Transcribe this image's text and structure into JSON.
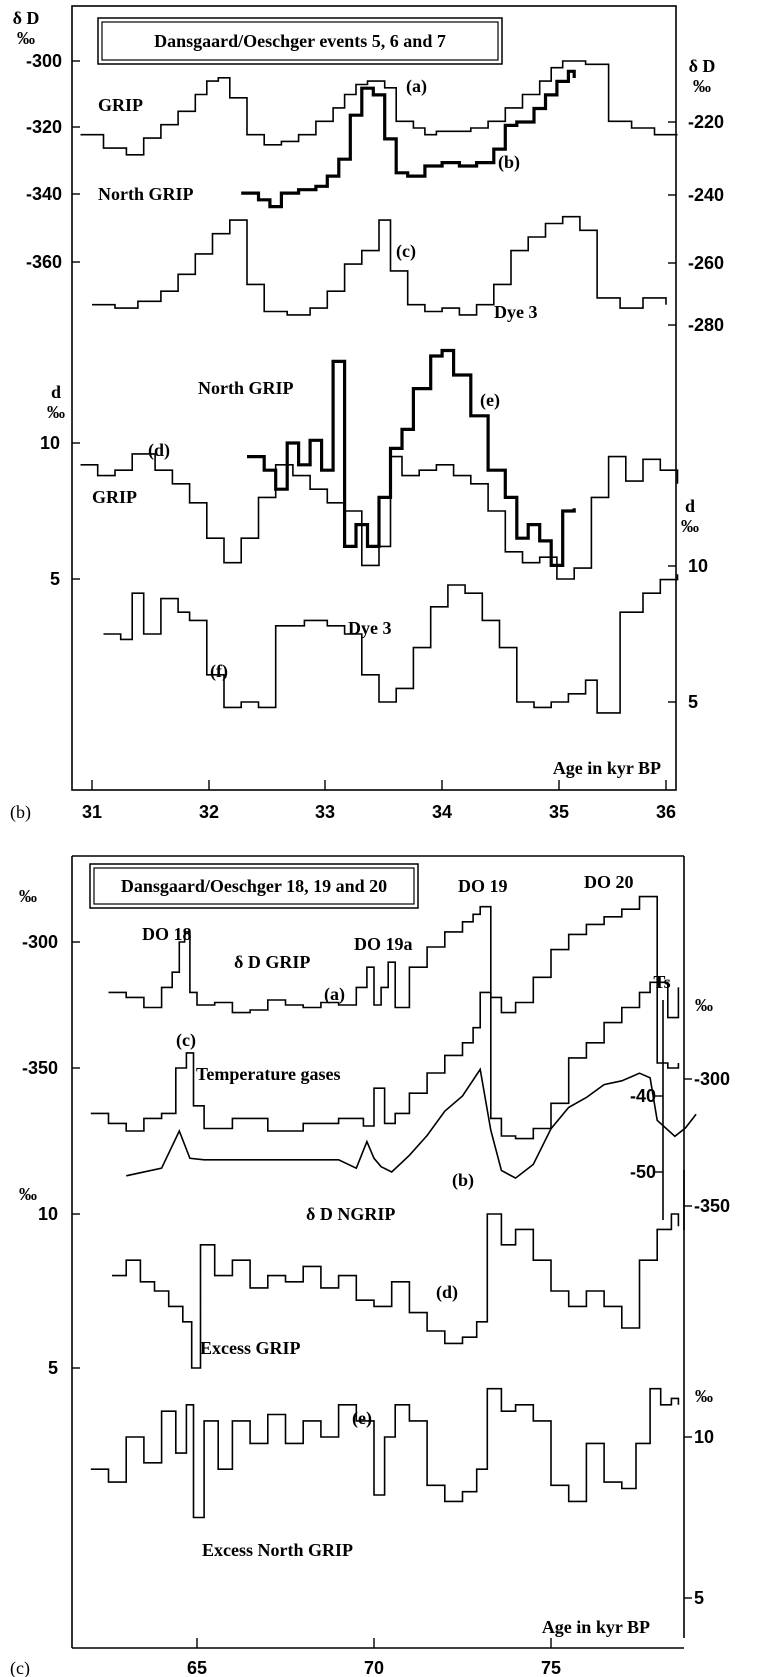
{
  "panel_b": {
    "panel_label": "(b)",
    "title": "Dansgaard/Oeschger events 5, 6 and 7",
    "xlabel": "Age in kyr BP",
    "x_ticks": [
      "31",
      "32",
      "33",
      "34",
      "35",
      "36"
    ],
    "left_dD_unit": "δ D",
    "left_dD_permil": "‰",
    "left_dD_ticks": [
      "-300",
      "-320",
      "-340",
      "-360"
    ],
    "right_dD_unit": "δ D",
    "right_dD_permil": "‰",
    "right_dD_ticks": [
      "-220",
      "-240",
      "-260",
      "-280"
    ],
    "left_d_unit": "d",
    "left_d_permil": "‰",
    "left_d_ticks": [
      "10",
      "5"
    ],
    "right_d_unit": "d",
    "right_d_permil": "‰",
    "right_d_ticks": [
      "10",
      "5"
    ],
    "labels": {
      "grip_a": "GRIP",
      "ngrip_b": "North GRIP",
      "dye3_c": "Dye 3",
      "ngrip_e": "North GRIP",
      "grip_d": "GRIP",
      "dye3_f": "Dye 3",
      "a": "(a)",
      "b": "(b)",
      "c": "(c)",
      "d": "(d)",
      "e": "(e)",
      "f": "(f)"
    }
  },
  "panel_c": {
    "panel_label": "(c)",
    "title": "Dansgaard/Oeschger 18, 19 and 20",
    "xlabel": "Age in kyr BP",
    "x_ticks": [
      "65",
      "70",
      "75"
    ],
    "left_permil_top": "‰",
    "left_top_ticks": [
      "-300",
      "-350"
    ],
    "left_permil_mid": "‰",
    "left_mid_ticks": [
      "10",
      "5"
    ],
    "right_permil_1": "‰",
    "right_dD_ticks": [
      "-300",
      "-350"
    ],
    "ts_label": "Ts",
    "ts_ticks": [
      "-40",
      "-50"
    ],
    "right_permil_2": "‰",
    "right_d_ticks": [
      "10",
      "5"
    ],
    "labels": {
      "do18": "DO 18",
      "do19a": "DO 19a",
      "do19": "DO 19",
      "do20": "DO 20",
      "dD_grip": "δ D  GRIP",
      "a": "(a)",
      "c": "(c)",
      "temp_gases": "Temperature gases",
      "b": "(b)",
      "dD_ngrip": "δ D NGRIP",
      "d": "(d)",
      "excess_grip": "Excess GRIP",
      "e": "(e)",
      "excess_ngrip": "Excess North GRIP"
    }
  },
  "chart_data": [
    {
      "type": "line",
      "title": "Dansgaard/Oeschger events 5, 6 and 7",
      "xlabel": "Age in kyr BP",
      "xlim": [
        30.9,
        36.1
      ],
      "series": [
        {
          "name": "GRIP",
          "axis": "δD ‰ (left)",
          "step": true,
          "x": [
            30.9,
            31.1,
            31.3,
            31.45,
            31.6,
            31.75,
            31.9,
            32.0,
            32.1,
            32.2,
            32.35,
            32.5,
            32.65,
            32.8,
            32.95,
            33.1,
            33.2,
            33.3,
            33.4,
            33.55,
            33.65,
            33.8,
            33.9,
            34.0,
            34.15,
            34.3,
            34.45,
            34.6,
            34.75,
            34.9,
            35.0,
            35.1,
            35.3,
            35.5,
            35.7,
            35.9,
            36.1
          ],
          "y": [
            -322,
            -326,
            -328,
            -323,
            -319,
            -315,
            -310,
            -306,
            -305,
            -311,
            -322,
            -325,
            -324,
            -322,
            -318,
            -314,
            -310,
            -307,
            -306,
            -308,
            -318,
            -320,
            -322,
            -321,
            -321,
            -320,
            -318,
            -314,
            -310,
            -306,
            -302,
            -300,
            -301,
            -318,
            -320,
            -322,
            -322
          ]
        },
        {
          "name": "North GRIP",
          "axis": "δD ‰ (right)",
          "step": true,
          "x": [
            32.3,
            32.45,
            32.55,
            32.65,
            32.8,
            32.95,
            33.05,
            33.15,
            33.25,
            33.35,
            33.45,
            33.55,
            33.65,
            33.75,
            33.9,
            34.05,
            34.2,
            34.35,
            34.5,
            34.6,
            34.7,
            34.85,
            34.95,
            35.05,
            35.15,
            35.2
          ],
          "y": [
            -241,
            -243,
            -245,
            -241,
            -240,
            -239,
            -236,
            -231,
            -218,
            -210,
            -212,
            -225,
            -235,
            -236,
            -233,
            -232,
            -233,
            -232,
            -228,
            -221,
            -220,
            -216,
            -212,
            -208,
            -205,
            -207
          ]
        },
        {
          "name": "Dye 3",
          "axis": "δD ‰ (right)",
          "step": true,
          "x": [
            31.0,
            31.2,
            31.4,
            31.6,
            31.75,
            31.9,
            32.05,
            32.2,
            32.35,
            32.5,
            32.7,
            32.9,
            33.05,
            33.2,
            33.35,
            33.5,
            33.6,
            33.75,
            33.9,
            34.05,
            34.2,
            34.35,
            34.5,
            34.65,
            34.8,
            34.95,
            35.1,
            35.25,
            35.4,
            35.6,
            35.8,
            36.0
          ],
          "y": [
            -274,
            -275,
            -273,
            -270,
            -265,
            -259,
            -253,
            -249,
            -268,
            -276,
            -277,
            -275,
            -270,
            -262,
            -258,
            -249,
            -264,
            -274,
            -276,
            -275,
            -277,
            -274,
            -268,
            -258,
            -254,
            -250,
            -248,
            -252,
            -272,
            -275,
            -272,
            -274
          ]
        },
        {
          "name": "GRIP",
          "axis": "d ‰ (left)",
          "step": true,
          "x": [
            30.9,
            31.05,
            31.2,
            31.35,
            31.55,
            31.7,
            31.85,
            32.0,
            32.15,
            32.3,
            32.45,
            32.6,
            32.75,
            32.9,
            33.05,
            33.2,
            33.35,
            33.5,
            33.6,
            33.7,
            33.85,
            34.0,
            34.15,
            34.3,
            34.45,
            34.6,
            34.75,
            34.9,
            35.05,
            35.2,
            35.35,
            35.5,
            35.65,
            35.8,
            35.95,
            36.1
          ],
          "y": [
            9.2,
            8.8,
            9.0,
            9.6,
            9.0,
            8.5,
            7.8,
            6.5,
            5.6,
            6.5,
            8.0,
            9.2,
            8.8,
            8.3,
            7.8,
            7.5,
            5.5,
            6.2,
            9.5,
            8.8,
            9.0,
            9.2,
            8.8,
            8.5,
            7.5,
            6.0,
            5.6,
            5.8,
            5.0,
            5.4,
            8.0,
            9.5,
            8.6,
            9.4,
            9.0,
            8.5
          ]
        },
        {
          "name": "North GRIP",
          "axis": "d ‰ (left)",
          "step": true,
          "x": [
            32.35,
            32.5,
            32.6,
            32.7,
            32.8,
            32.9,
            33.0,
            33.1,
            33.2,
            33.3,
            33.4,
            33.5,
            33.6,
            33.7,
            33.8,
            33.95,
            34.05,
            34.15,
            34.3,
            34.45,
            34.6,
            34.7,
            34.8,
            34.9,
            35.0,
            35.1,
            35.2
          ],
          "y": [
            9.5,
            9.0,
            8.3,
            10.0,
            9.2,
            10.1,
            9.0,
            13.0,
            6.2,
            7.0,
            6.2,
            8.0,
            9.8,
            10.5,
            12.0,
            13.2,
            13.4,
            12.5,
            11.0,
            9.0,
            8.0,
            6.5,
            7.0,
            6.4,
            5.5,
            7.5,
            7.6
          ]
        },
        {
          "name": "Dye 3",
          "axis": "d ‰ (right)",
          "step": true,
          "x": [
            31.1,
            31.25,
            31.35,
            31.45,
            31.6,
            31.75,
            31.85,
            32.0,
            32.15,
            32.3,
            32.45,
            32.6,
            32.85,
            33.05,
            33.2,
            33.35,
            33.5,
            33.65,
            33.8,
            33.95,
            34.1,
            34.25,
            34.4,
            34.55,
            34.7,
            34.85,
            35.0,
            35.15,
            35.3,
            35.4,
            35.6,
            35.8,
            35.95,
            36.1
          ],
          "y": [
            7.5,
            7.3,
            9.0,
            7.5,
            8.8,
            8.3,
            8.0,
            6.0,
            4.8,
            5.0,
            4.8,
            7.8,
            8.0,
            7.8,
            7.5,
            6.0,
            5.0,
            5.5,
            7.0,
            8.5,
            9.3,
            9.0,
            8.0,
            7.0,
            5.0,
            4.8,
            5.0,
            5.3,
            5.8,
            4.6,
            8.3,
            9.0,
            9.5,
            9.7
          ]
        }
      ]
    },
    {
      "type": "line",
      "title": "Dansgaard/Oeschger 18, 19 and 20",
      "xlabel": "Age in kyr BP",
      "xlim": [
        61.9,
        79.2
      ],
      "annotations": [
        "DO 18",
        "DO 19a",
        "DO 19",
        "DO 20"
      ],
      "series": [
        {
          "name": "δ D  GRIP",
          "axis": "δD ‰ (left)",
          "step": true,
          "x": [
            62.5,
            63.0,
            63.5,
            64.0,
            64.3,
            64.5,
            64.65,
            64.8,
            65.0,
            65.5,
            66.0,
            66.5,
            67.0,
            67.5,
            68.0,
            68.5,
            69.0,
            69.5,
            69.8,
            70.0,
            70.2,
            70.4,
            70.6,
            71.0,
            71.5,
            72.0,
            72.5,
            72.8,
            73.0,
            73.3,
            73.6,
            74.0,
            74.5,
            75.0,
            75.5,
            76.0,
            76.5,
            77.0,
            77.5,
            78.0,
            78.3,
            78.6
          ],
          "y": [
            -320,
            -322,
            -326,
            -318,
            -312,
            -300,
            -296,
            -320,
            -325,
            -324,
            -328,
            -327,
            -323,
            -325,
            -326,
            -324,
            -325,
            -318,
            -310,
            -325,
            -318,
            -308,
            -326,
            -310,
            -302,
            -296,
            -292,
            -289,
            -286,
            -322,
            -328,
            -324,
            -314,
            -303,
            -297,
            -293,
            -290,
            -287,
            -282,
            -316,
            -330,
            -318
          ]
        },
        {
          "name": "δ D NGRIP",
          "axis": "δD ‰ (left)",
          "step": true,
          "x": [
            62.0,
            62.5,
            63.0,
            63.5,
            64.0,
            64.4,
            64.7,
            64.9,
            65.2,
            66.0,
            67.0,
            68.0,
            69.0,
            69.7,
            70.0,
            70.3,
            70.6,
            71.0,
            71.5,
            72.0,
            72.5,
            72.8,
            73.0,
            73.3,
            73.6,
            74.0,
            74.5,
            75.0,
            75.5,
            76.0,
            76.5,
            77.0,
            77.5,
            77.8,
            78.0,
            78.3,
            78.6
          ],
          "y": [
            -368,
            -372,
            -375,
            -370,
            -368,
            -350,
            -344,
            -365,
            -374,
            -370,
            -375,
            -372,
            -370,
            -373,
            -358,
            -372,
            -368,
            -360,
            -352,
            -345,
            -340,
            -334,
            -320,
            -370,
            -377,
            -378,
            -374,
            -364,
            -346,
            -340,
            -332,
            -326,
            -320,
            -316,
            -348,
            -350,
            -348
          ]
        },
        {
          "name": "Temperature gases",
          "axis": "Ts (right)",
          "step": false,
          "x": [
            63.0,
            64.0,
            64.5,
            64.8,
            65.2,
            66.0,
            67.0,
            68.0,
            69.0,
            69.5,
            69.8,
            70.0,
            70.2,
            70.5,
            71.0,
            71.5,
            72.0,
            72.5,
            73.0,
            73.3,
            73.6,
            74.0,
            74.5,
            75.0,
            75.5,
            76.0,
            76.5,
            77.0,
            77.5,
            77.8,
            78.0,
            78.5,
            78.8,
            79.1
          ],
          "y": [
            -50.5,
            -49.5,
            -44.6,
            -48.2,
            -48.4,
            -48.4,
            -48.4,
            -48.4,
            -48.4,
            -49.5,
            -46.0,
            -48.2,
            -49.3,
            -50.0,
            -47.8,
            -45.2,
            -42.0,
            -40.0,
            -36.5,
            -44.5,
            -49.8,
            -50.8,
            -49.0,
            -44.3,
            -41.5,
            -40.2,
            -38.5,
            -38.0,
            -37.0,
            -37.6,
            -43.2,
            -45.3,
            -44.2,
            -42.4
          ]
        },
        {
          "name": "Excess GRIP",
          "axis": "d ‰ (left)",
          "step": true,
          "x": [
            62.6,
            63.0,
            63.4,
            63.8,
            64.2,
            64.6,
            64.85,
            65.1,
            65.5,
            66.0,
            66.5,
            67.0,
            67.5,
            68.0,
            68.5,
            69.0,
            69.5,
            70.0,
            70.5,
            71.0,
            71.5,
            72.0,
            72.5,
            72.9,
            73.2,
            73.6,
            74.0,
            74.5,
            75.0,
            75.5,
            76.0,
            76.5,
            77.0,
            77.5,
            78.0,
            78.4,
            78.6
          ],
          "y": [
            8.0,
            8.5,
            7.8,
            7.5,
            7.0,
            6.5,
            5.0,
            9.0,
            8.0,
            8.5,
            7.6,
            8.0,
            7.8,
            8.3,
            7.6,
            8.0,
            7.2,
            7.0,
            7.8,
            6.8,
            6.2,
            5.8,
            6.0,
            6.5,
            10.0,
            9.0,
            9.5,
            8.5,
            7.5,
            7.0,
            7.5,
            7.0,
            6.3,
            8.5,
            9.5,
            10.0,
            9.6
          ]
        },
        {
          "name": "Excess North GRIP",
          "axis": "d ‰ (right)",
          "step": true,
          "x": [
            62.0,
            62.5,
            63.0,
            63.5,
            64.0,
            64.4,
            64.7,
            64.9,
            65.2,
            65.6,
            66.0,
            66.5,
            67.0,
            67.5,
            68.0,
            68.5,
            69.0,
            69.5,
            70.0,
            70.3,
            70.6,
            71.0,
            71.5,
            72.0,
            72.5,
            72.9,
            73.2,
            73.6,
            74.0,
            74.5,
            75.0,
            75.5,
            76.0,
            76.5,
            77.0,
            77.4,
            77.8,
            78.1,
            78.4,
            78.6
          ],
          "y": [
            9.0,
            8.6,
            10.0,
            9.2,
            10.8,
            9.5,
            11.0,
            7.5,
            10.5,
            9.0,
            10.5,
            9.8,
            10.7,
            9.8,
            10.5,
            10.0,
            11.0,
            10.5,
            8.2,
            10.0,
            11.0,
            10.5,
            8.5,
            8.0,
            8.3,
            9.0,
            11.5,
            10.8,
            11.0,
            10.5,
            8.5,
            8.0,
            9.8,
            8.6,
            8.4,
            9.8,
            11.5,
            11.0,
            11.2,
            11.0
          ]
        }
      ]
    }
  ]
}
